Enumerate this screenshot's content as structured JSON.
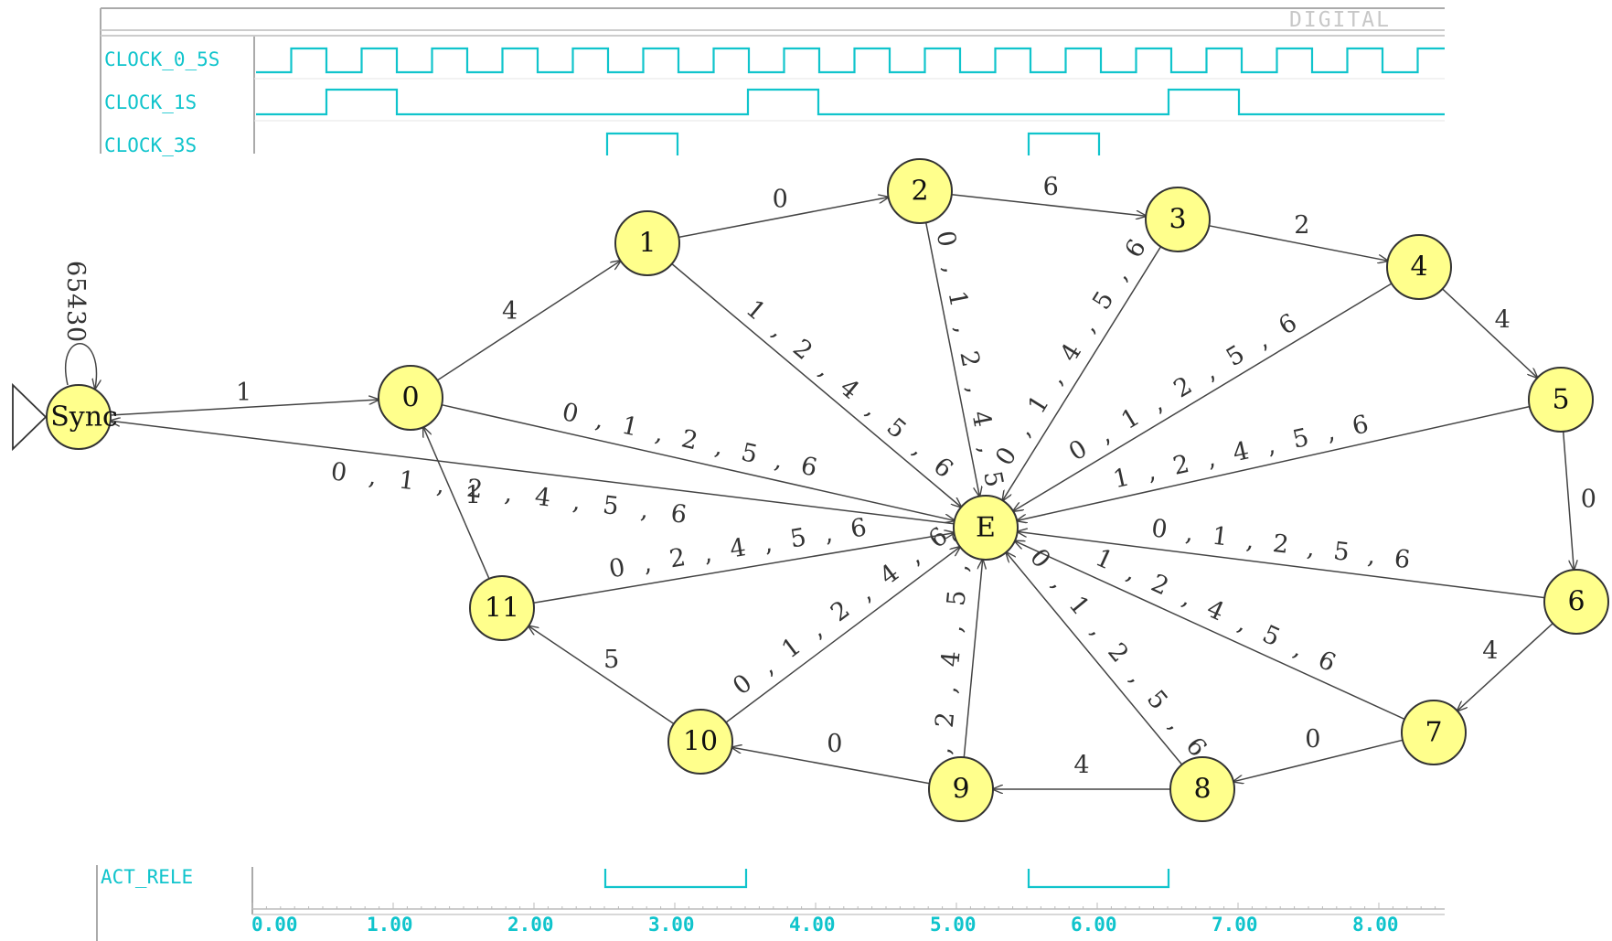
{
  "timing_top": {
    "header_label": "DIGITAL",
    "signals": [
      {
        "name": "CLOCK_0_5S"
      },
      {
        "name": "CLOCK_1S"
      },
      {
        "name": "CLOCK_3S"
      }
    ]
  },
  "timing_bottom": {
    "signal": "ACT_RELE",
    "ticks": [
      "0.00",
      "1.00",
      "2.00",
      "3.00",
      "4.00",
      "5.00",
      "6.00",
      "7.00",
      "8.00"
    ]
  },
  "colors": {
    "signal": "#10c4cc",
    "node_fill": "#ffff8c",
    "node_stroke": "#333333",
    "edge": "#444444"
  },
  "diagram": {
    "start_node": "Sync",
    "self_loop_labels": [
      "6",
      "5",
      "4",
      "3",
      "0"
    ],
    "nodes": [
      "Sync",
      "0",
      "1",
      "2",
      "3",
      "4",
      "5",
      "6",
      "7",
      "8",
      "9",
      "10",
      "11",
      "E"
    ],
    "edges": [
      {
        "from": "Sync",
        "to": "0",
        "label": "1"
      },
      {
        "from": "0",
        "to": "1",
        "label": "4"
      },
      {
        "from": "1",
        "to": "2",
        "label": "0"
      },
      {
        "from": "2",
        "to": "3",
        "label": "6"
      },
      {
        "from": "3",
        "to": "4",
        "label": "2"
      },
      {
        "from": "4",
        "to": "5",
        "label": "4"
      },
      {
        "from": "5",
        "to": "6",
        "label": "0"
      },
      {
        "from": "6",
        "to": "7",
        "label": "4"
      },
      {
        "from": "7",
        "to": "8",
        "label": "0"
      },
      {
        "from": "8",
        "to": "9",
        "label": "4"
      },
      {
        "from": "9",
        "to": "10",
        "label": "0"
      },
      {
        "from": "10",
        "to": "11",
        "label": "5"
      },
      {
        "from": "11",
        "to": "0",
        "label": "1"
      },
      {
        "from": "0",
        "to": "E",
        "label": "0,1,2,5,6"
      },
      {
        "from": "1",
        "to": "E",
        "label": "1,2,4,5,6"
      },
      {
        "from": "2",
        "to": "E",
        "label": "0,1,2,4,5"
      },
      {
        "from": "3",
        "to": "E",
        "label": "0,1,4,5,6"
      },
      {
        "from": "4",
        "to": "E",
        "label": "0,1,2,5,6"
      },
      {
        "from": "5",
        "to": "E",
        "label": "1,2,4,5,6"
      },
      {
        "from": "6",
        "to": "E",
        "label": "0,1,2,5,6"
      },
      {
        "from": "7",
        "to": "E",
        "label": "1,2,4,5,6"
      },
      {
        "from": "8",
        "to": "E",
        "label": "0,1,2,5,6"
      },
      {
        "from": "9",
        "to": "E",
        "label": "1,2,4,5,6"
      },
      {
        "from": "10",
        "to": "E",
        "label": "0,1,2,4,6"
      },
      {
        "from": "11",
        "to": "E",
        "label": "0,2,4,5,6"
      },
      {
        "from": "E",
        "to": "Sync",
        "label": "0,1,2,4,5,6"
      }
    ]
  }
}
